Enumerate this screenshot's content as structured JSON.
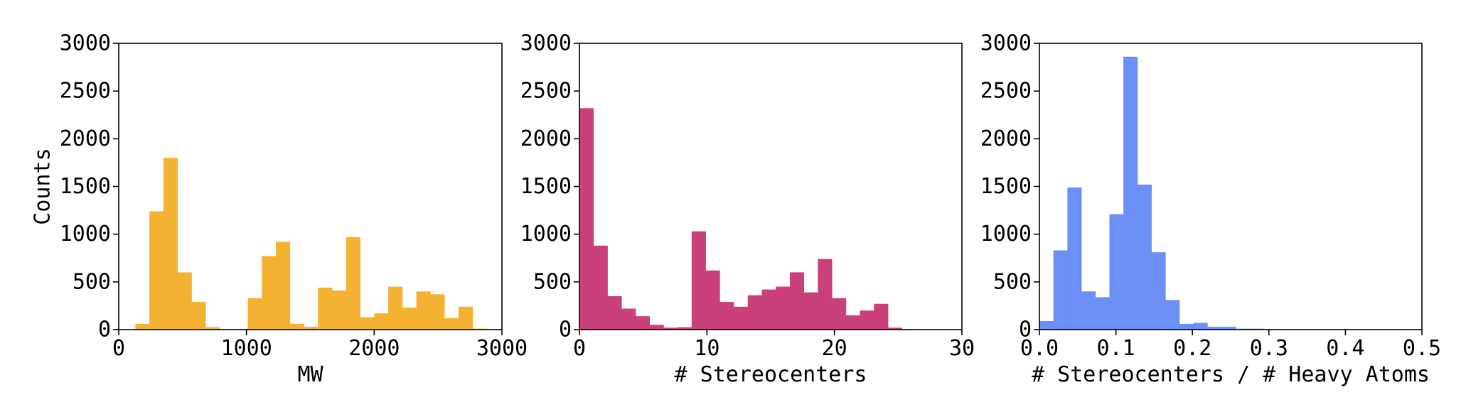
{
  "chart_data": [
    {
      "type": "bar",
      "xlabel": "MW",
      "ylabel": "Counts",
      "color": "#f4b233",
      "xlim": [
        0,
        3000
      ],
      "ylim": [
        0,
        3000
      ],
      "xticks": [
        0,
        1000,
        2000,
        3000
      ],
      "xtick_labels": [
        "0",
        "1000",
        "2000",
        "3000"
      ],
      "yticks": [
        0,
        500,
        1000,
        1500,
        2000,
        2500,
        3000
      ],
      "ytick_labels": [
        "0",
        "500",
        "1000",
        "1500",
        "2000",
        "2500",
        "3000"
      ],
      "bins": [
        [
          130,
          240,
          60
        ],
        [
          240,
          350,
          1240
        ],
        [
          350,
          460,
          1800
        ],
        [
          460,
          570,
          600
        ],
        [
          570,
          680,
          290
        ],
        [
          680,
          790,
          25
        ],
        [
          790,
          900,
          5
        ],
        [
          900,
          1010,
          5
        ],
        [
          1010,
          1120,
          330
        ],
        [
          1120,
          1230,
          770
        ],
        [
          1230,
          1340,
          920
        ],
        [
          1340,
          1450,
          60
        ],
        [
          1450,
          1560,
          30
        ],
        [
          1560,
          1670,
          440
        ],
        [
          1670,
          1780,
          410
        ],
        [
          1780,
          1890,
          970
        ],
        [
          1890,
          2000,
          130
        ],
        [
          2000,
          2110,
          170
        ],
        [
          2110,
          2220,
          450
        ],
        [
          2220,
          2330,
          230
        ],
        [
          2330,
          2440,
          400
        ],
        [
          2440,
          2550,
          370
        ],
        [
          2550,
          2660,
          120
        ],
        [
          2660,
          2770,
          240
        ],
        [
          2770,
          2880,
          10
        ],
        [
          2880,
          2990,
          5
        ]
      ]
    },
    {
      "type": "bar",
      "xlabel": "# Stereocenters",
      "ylabel": "",
      "color": "#c9407a",
      "xlim": [
        0,
        30
      ],
      "ylim": [
        0,
        3000
      ],
      "xticks": [
        0,
        10,
        20,
        30
      ],
      "xtick_labels": [
        "0",
        "10",
        "20",
        "30"
      ],
      "yticks": [
        0,
        500,
        1000,
        1500,
        2000,
        2500,
        3000
      ],
      "ytick_labels": [
        "0",
        "500",
        "1000",
        "1500",
        "2000",
        "2500",
        "3000"
      ],
      "bins": [
        [
          0,
          1.1,
          2320
        ],
        [
          1.1,
          2.2,
          880
        ],
        [
          2.2,
          3.3,
          350
        ],
        [
          3.3,
          4.4,
          220
        ],
        [
          4.4,
          5.5,
          140
        ],
        [
          5.5,
          6.6,
          50
        ],
        [
          6.6,
          7.7,
          20
        ],
        [
          7.7,
          8.8,
          25
        ],
        [
          8.8,
          9.9,
          1030
        ],
        [
          9.9,
          11.0,
          620
        ],
        [
          11.0,
          12.1,
          290
        ],
        [
          12.1,
          13.2,
          240
        ],
        [
          13.2,
          14.3,
          360
        ],
        [
          14.3,
          15.4,
          420
        ],
        [
          15.4,
          16.5,
          450
        ],
        [
          16.5,
          17.6,
          600
        ],
        [
          17.6,
          18.7,
          390
        ],
        [
          18.7,
          19.8,
          740
        ],
        [
          19.8,
          20.9,
          330
        ],
        [
          20.9,
          22.0,
          150
        ],
        [
          22.0,
          23.1,
          200
        ],
        [
          23.1,
          24.2,
          270
        ],
        [
          24.2,
          25.3,
          20
        ],
        [
          25.3,
          26.4,
          5
        ],
        [
          26.4,
          27.5,
          3
        ]
      ]
    },
    {
      "type": "bar",
      "xlabel": "# Stereocenters / # Heavy Atoms",
      "ylabel": "",
      "color": "#6b8ff5",
      "xlim": [
        0.0,
        0.5
      ],
      "ylim": [
        0,
        3000
      ],
      "xticks": [
        0.0,
        0.1,
        0.2,
        0.3,
        0.4,
        0.5
      ],
      "xtick_labels": [
        "0.0",
        "0.1",
        "0.2",
        "0.3",
        "0.4",
        "0.5"
      ],
      "yticks": [
        0,
        500,
        1000,
        1500,
        2000,
        2500,
        3000
      ],
      "ytick_labels": [
        "0",
        "500",
        "1000",
        "1500",
        "2000",
        "2500",
        "3000"
      ],
      "bins": [
        [
          0.0,
          0.0183,
          90
        ],
        [
          0.0183,
          0.0366,
          830
        ],
        [
          0.0366,
          0.0549,
          1490
        ],
        [
          0.0549,
          0.0732,
          400
        ],
        [
          0.0732,
          0.0915,
          340
        ],
        [
          0.0915,
          0.1098,
          1210
        ],
        [
          0.1098,
          0.1281,
          2860
        ],
        [
          0.1281,
          0.1464,
          1520
        ],
        [
          0.1464,
          0.1647,
          810
        ],
        [
          0.1647,
          0.183,
          310
        ],
        [
          0.183,
          0.2013,
          60
        ],
        [
          0.2013,
          0.2196,
          70
        ],
        [
          0.2196,
          0.2379,
          30
        ],
        [
          0.2379,
          0.2562,
          30
        ],
        [
          0.2562,
          0.2745,
          10
        ],
        [
          0.2745,
          0.2928,
          10
        ],
        [
          0.2928,
          0.3111,
          5
        ]
      ]
    }
  ]
}
